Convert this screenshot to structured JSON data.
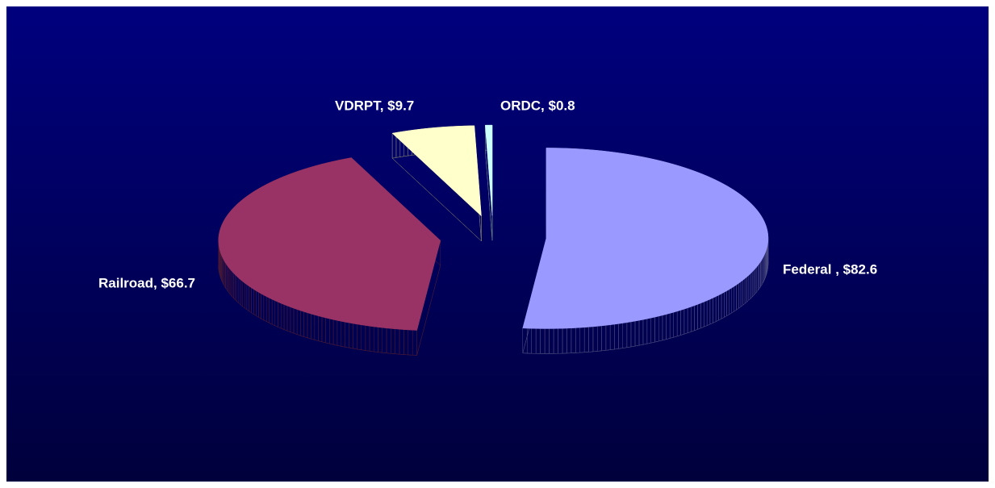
{
  "chart_data": {
    "type": "pie",
    "three_d": true,
    "exploded": true,
    "values": [
      82.6,
      66.7,
      9.7,
      0.8
    ],
    "value_labels": [
      "Federal , $82.6",
      "Railroad, $66.7",
      "VDRPT, $9.7",
      "ORDC, $0.8"
    ],
    "colors": [
      "#9999ff",
      "#993366",
      "#ffffcc",
      "#ccffff"
    ]
  }
}
